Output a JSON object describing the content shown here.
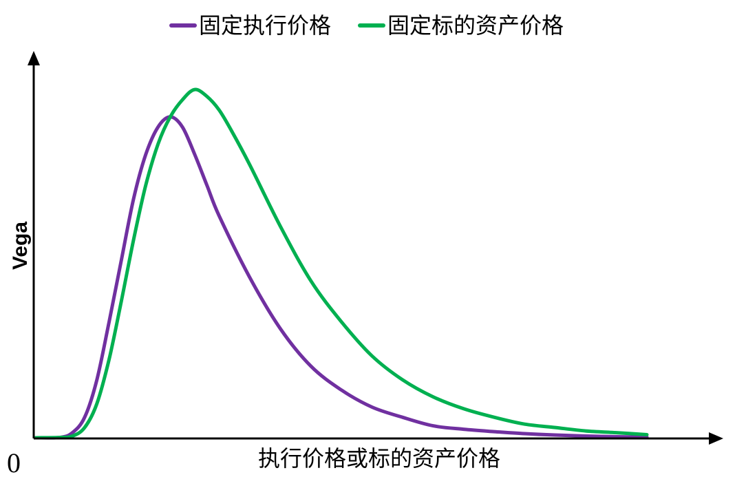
{
  "chart_data": {
    "type": "line",
    "title": "",
    "xlabel": "执行价格或标的资产价格",
    "ylabel": "Vega",
    "origin_label": "0",
    "xlim": [
      0,
      100
    ],
    "ylim": [
      0,
      100
    ],
    "grid": false,
    "legend_position": "top",
    "series": [
      {
        "name": "固定执行价格",
        "color": "#7030a0",
        "x": [
          0,
          4,
          6,
          8,
          10,
          12,
          14,
          16,
          18,
          20,
          22,
          24,
          26,
          28,
          30,
          35,
          40,
          45,
          50,
          55,
          60,
          65,
          70,
          75,
          80,
          85,
          90,
          95,
          100
        ],
        "y": [
          0,
          0.1,
          1.5,
          6,
          17,
          34,
          52,
          70,
          83,
          91,
          94,
          91,
          83,
          74,
          65,
          47,
          32,
          21,
          14,
          9,
          6,
          3.5,
          2.5,
          1.8,
          1.2,
          0.8,
          0.5,
          0.3,
          0.2
        ]
      },
      {
        "name": "固定标的资产价格",
        "color": "#00b050",
        "x": [
          0,
          4,
          6,
          8,
          10,
          12,
          14,
          16,
          18,
          20,
          22,
          24,
          26,
          28,
          30,
          32,
          35,
          40,
          45,
          50,
          55,
          60,
          65,
          70,
          75,
          80,
          85,
          90,
          95,
          100
        ],
        "y": [
          0,
          0.1,
          0.5,
          3,
          10,
          23,
          40,
          58,
          74,
          86,
          94,
          99,
          102,
          100,
          96,
          90,
          80,
          62,
          46,
          34,
          24,
          17,
          12,
          8.5,
          6,
          4,
          3,
          2,
          1.5,
          0.9
        ]
      }
    ]
  }
}
